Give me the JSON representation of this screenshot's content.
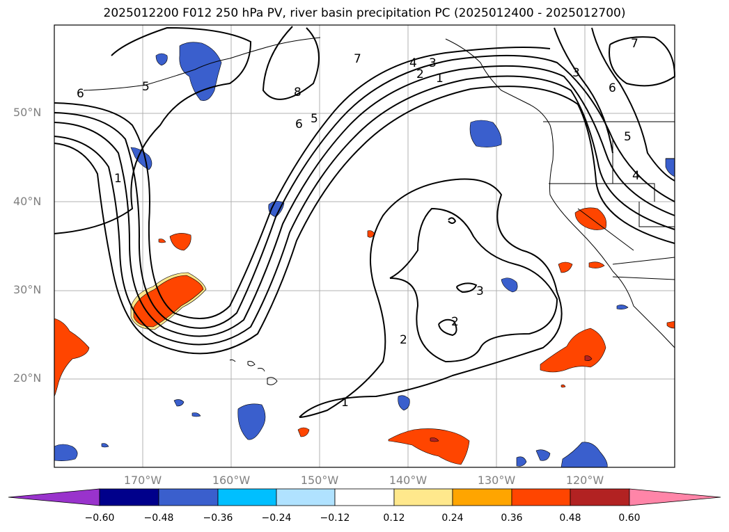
{
  "title": "2025012200 F012 250 hPa PV, river basin precipitation PC (2025012400 - 2025012700)",
  "lat_labels": [
    "50°N",
    "40°N",
    "30°N",
    "20°N"
  ],
  "lon_labels": [
    "170°W",
    "160°W",
    "150°W",
    "140°W",
    "130°W",
    "120°W"
  ],
  "colorbar": {
    "ticks": [
      "−0.60",
      "−0.48",
      "−0.36",
      "−0.24",
      "−0.12",
      "0.12",
      "0.24",
      "0.36",
      "0.48",
      "0.60"
    ],
    "colors": [
      "#9933cc",
      "#00008b",
      "#3a5fcd",
      "#00bfff",
      "#b0e2ff",
      "#ffffff",
      "#ffe88c",
      "#ffa500",
      "#ff4500",
      "#b22222",
      "#ff85a8"
    ]
  },
  "contour_labels": [
    "6",
    "5",
    "8",
    "7",
    "4",
    "3",
    "2",
    "1",
    "6",
    "5",
    "1",
    "3",
    "2",
    "2",
    "1",
    "7",
    "3",
    "6",
    "5",
    "4"
  ]
}
